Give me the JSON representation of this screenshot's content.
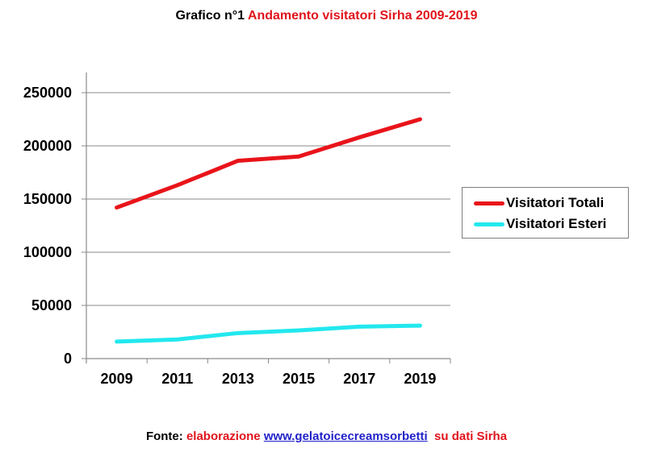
{
  "title": {
    "prefix": "Grafico n°1",
    "main": "Andamento visitatori Sirha 2009-2019"
  },
  "legend": [
    {
      "label": "Visitatori Totali",
      "color": "#e8141a"
    },
    {
      "label": "Visitatori Esteri",
      "color": "#22e8ee"
    }
  ],
  "source": {
    "prefix": "Fonte:",
    "text1": "elaborazione",
    "link": "www.gelatoicecreamsorbetti",
    "text2": "su dati Sirha"
  },
  "chart_data": {
    "type": "line",
    "title": "Grafico n°1 Andamento visitatori Sirha 2009-2019",
    "xlabel": "",
    "ylabel": "",
    "categories": [
      "2009",
      "2011",
      "2013",
      "2015",
      "2017",
      "2019"
    ],
    "series": [
      {
        "name": "Visitatori Totali",
        "color": "#e8141a",
        "values": [
          142000,
          163000,
          186000,
          190000,
          208000,
          225000
        ]
      },
      {
        "name": "Visitatori Esteri",
        "color": "#22e8ee",
        "values": [
          16000,
          18000,
          24000,
          26500,
          30000,
          31000
        ]
      }
    ],
    "ylim": [
      0,
      250000
    ],
    "yticks": [
      0,
      50000,
      100000,
      150000,
      200000,
      250000
    ],
    "grid": true,
    "legend_position": "right"
  }
}
